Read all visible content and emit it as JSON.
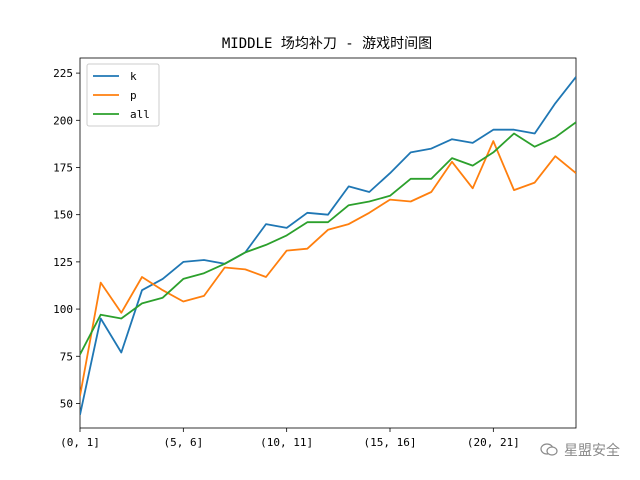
{
  "chart_data": {
    "type": "line",
    "title": "MIDDLE 场均补刀 - 游戏时间图",
    "x_tick_labels": [
      "(0, 1]",
      "(5, 6]",
      "(10, 11]",
      "(15, 16]",
      "(20, 21]"
    ],
    "x_tick_positions": [
      0,
      5,
      10,
      15,
      20
    ],
    "y_ticks": [
      50,
      75,
      100,
      125,
      150,
      175,
      200,
      225
    ],
    "xlim": [
      0,
      24
    ],
    "ylim": [
      37,
      233
    ],
    "legend_position": "upper-left",
    "series": [
      {
        "name": "k",
        "color": "#1f77b4",
        "values": [
          44,
          95,
          77,
          110,
          116,
          125,
          126,
          124,
          130,
          145,
          143,
          151,
          150,
          165,
          162,
          172,
          183,
          185,
          190,
          188,
          195,
          195,
          193,
          209,
          223
        ]
      },
      {
        "name": "p",
        "color": "#ff7f0e",
        "values": [
          54,
          114,
          98,
          117,
          110,
          104,
          107,
          122,
          121,
          117,
          131,
          132,
          142,
          145,
          151,
          158,
          157,
          162,
          178,
          164,
          189,
          163,
          167,
          181,
          172
        ]
      },
      {
        "name": "all",
        "color": "#2ca02c",
        "values": [
          76,
          97,
          95,
          103,
          106,
          116,
          119,
          124,
          130,
          134,
          139,
          146,
          146,
          155,
          157,
          160,
          169,
          169,
          180,
          176,
          183,
          193,
          186,
          191,
          199
        ]
      }
    ]
  },
  "watermark": {
    "text": "星盟安全"
  }
}
